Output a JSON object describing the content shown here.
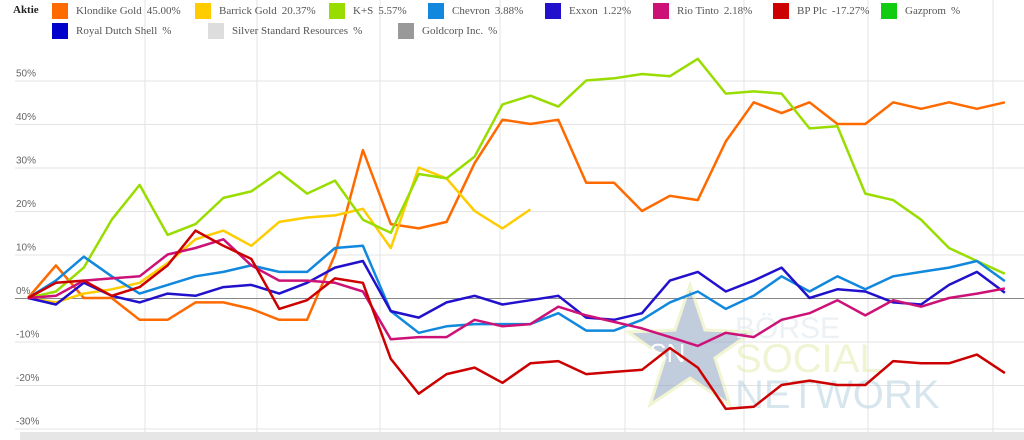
{
  "legend": {
    "title": "Aktie",
    "items": [
      {
        "name": "Klondike Gold",
        "value": "45.00%",
        "color": "#ff6a00"
      },
      {
        "name": "Barrick Gold",
        "value": "20.37%",
        "color": "#ffcc00"
      },
      {
        "name": "K+S",
        "value": "5.57%",
        "color": "#99dd00"
      },
      {
        "name": "Chevron",
        "value": "3.88%",
        "color": "#1188dd"
      },
      {
        "name": "Exxon",
        "value": "1.22%",
        "color": "#2211cc"
      },
      {
        "name": "Rio Tinto",
        "value": "2.18%",
        "color": "#cc1177"
      },
      {
        "name": "BP Plc",
        "value": "-17.27%",
        "color": "#cc0000"
      },
      {
        "name": "Gazprom",
        "value": "%",
        "color": "#11cc11"
      },
      {
        "name": "Royal Dutch Shell",
        "value": "%",
        "color": "#0000cc"
      },
      {
        "name": "Silver Standard Resources",
        "value": "%",
        "color": "#dddddd"
      },
      {
        "name": "Goldcorp Inc.",
        "value": "%",
        "color": "#999999"
      }
    ]
  },
  "watermark": {
    "line1": "BÖRSE",
    "line2": "SOCIAL",
    "line3": "NETWORK",
    "badge": "BSN"
  },
  "chart_data": {
    "type": "line",
    "title": "",
    "xlabel": "",
    "ylabel": "",
    "ylim": [
      -30,
      60
    ],
    "yticks": [
      "50%",
      "40%",
      "30%",
      "20%",
      "10%",
      "0%",
      "-10%",
      "-20%",
      "-30%"
    ],
    "ytick_values": [
      50,
      40,
      30,
      20,
      10,
      0,
      -10,
      -20,
      -30
    ],
    "grid": true,
    "legend_position": "top",
    "series": [
      {
        "name": "Klondike Gold",
        "color": "#ff6a00",
        "values": [
          0,
          7.5,
          0,
          0,
          -5,
          -5,
          -1,
          -1,
          -2.5,
          -5,
          -5,
          10,
          34,
          17,
          16,
          17.5,
          31,
          41,
          40,
          41,
          26.5,
          26.5,
          20,
          23.5,
          22.5,
          36,
          45,
          42.5,
          45,
          40,
          40,
          45,
          43.5,
          45,
          43.5,
          45
        ]
      },
      {
        "name": "Barrick Gold",
        "color": "#ffcc00",
        "values": [
          0,
          -1,
          1,
          2,
          3.5,
          8,
          13.5,
          15.5,
          12,
          17.5,
          18.5,
          19,
          20.5,
          11.5,
          30,
          27.5,
          20,
          16,
          20.37,
          null,
          null,
          null,
          null,
          null,
          null,
          null,
          null,
          null,
          null,
          null,
          null,
          null,
          null,
          null,
          null,
          null
        ]
      },
      {
        "name": "K+S",
        "color": "#99dd00",
        "values": [
          0,
          1.5,
          7,
          18,
          26,
          14.5,
          17,
          23,
          24.5,
          29,
          24,
          27,
          18,
          15,
          28.5,
          27.5,
          32.5,
          44.5,
          46.5,
          44,
          50,
          50.5,
          51.5,
          51,
          55,
          47,
          47.5,
          47,
          39,
          39.5,
          24,
          22.5,
          18,
          11.5,
          8.5,
          5.57
        ]
      },
      {
        "name": "Chevron",
        "color": "#1188dd",
        "values": [
          0,
          4,
          9.5,
          5,
          1,
          3,
          5,
          6,
          7.5,
          6,
          6,
          11.5,
          12,
          -3,
          -8,
          -6.5,
          -6,
          -6,
          -6,
          -3.5,
          -7.5,
          -7.5,
          -5,
          -1,
          1.5,
          -2.5,
          0.5,
          5,
          1.5,
          5,
          2,
          5,
          6,
          7,
          8.5,
          3.88
        ]
      },
      {
        "name": "Exxon",
        "color": "#2211cc",
        "values": [
          0,
          -1.5,
          3.5,
          0.5,
          -1,
          1,
          0.5,
          2.5,
          3,
          1,
          3.5,
          7,
          8.5,
          -3,
          -4.5,
          -1,
          0.5,
          -1.5,
          -0.5,
          0.5,
          -4.5,
          -5,
          -3.5,
          4,
          6,
          1.5,
          4,
          7,
          0,
          2,
          1.5,
          -1,
          -1.5,
          3,
          6,
          1.22
        ]
      },
      {
        "name": "Rio Tinto",
        "color": "#cc1177",
        "values": [
          0,
          0.5,
          4,
          4.5,
          5,
          10,
          11.5,
          13.5,
          7.5,
          4,
          4,
          3.5,
          1.5,
          -9.5,
          -9,
          -9,
          -5,
          -6.5,
          -6,
          -2,
          -4,
          -5.5,
          -7,
          -9,
          -11,
          -8,
          -9,
          -5,
          -3.5,
          -0.5,
          -4,
          -0.5,
          -2,
          0,
          1,
          2.18
        ]
      },
      {
        "name": "BP Plc",
        "color": "#cc0000",
        "values": [
          0,
          3.5,
          4,
          0.5,
          2.5,
          7.5,
          15.5,
          12,
          9,
          -2.5,
          -0.5,
          4.5,
          3.5,
          -14,
          -22,
          -17.5,
          -16,
          -19.5,
          -15,
          -14.5,
          -17.5,
          -17,
          -16.5,
          -11.5,
          -16,
          -25.5,
          -25,
          -20,
          -19,
          -20,
          -20,
          -14.5,
          -15,
          -15,
          -13,
          -17.27
        ]
      }
    ]
  }
}
